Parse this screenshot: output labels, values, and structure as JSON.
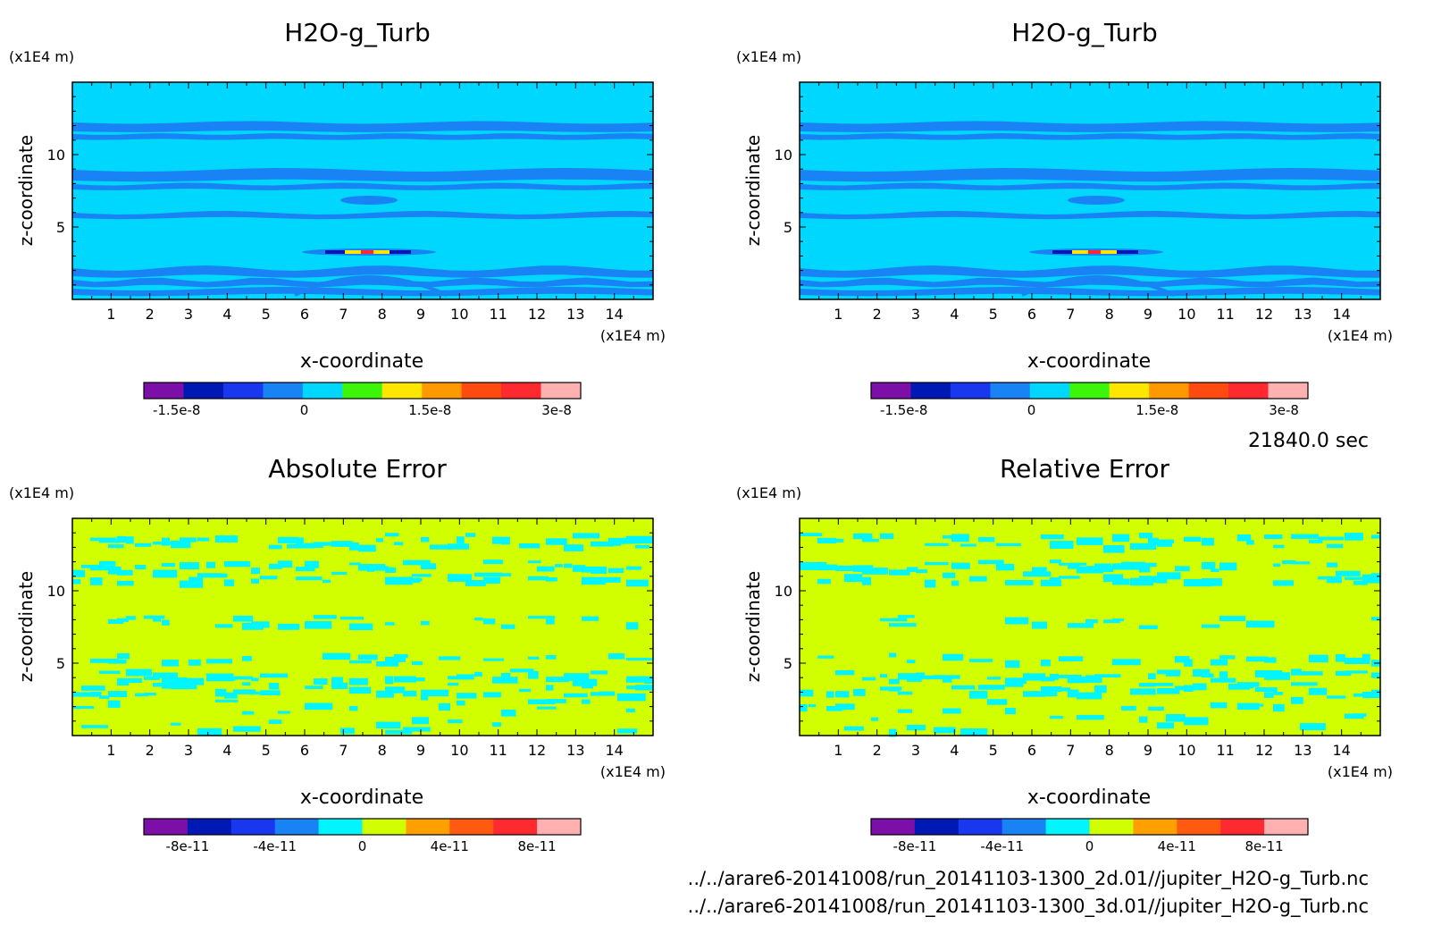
{
  "time_label": "21840.0 sec",
  "files": [
    "../../arare6-20141008/run_20141103-1300_2d.01//jupiter_H2O-g_Turb.nc",
    "../../arare6-20141008/run_20141103-1300_3d.01//jupiter_H2O-g_Turb.nc"
  ],
  "chart_data": [
    {
      "type": "heatmap",
      "title": "H2O-g_Turb",
      "xlabel": "x-coordinate",
      "ylabel": "z-coordinate",
      "x_unit": "(x1E4 m)",
      "y_unit": "(x1E4 m)",
      "xlim": [
        0,
        15
      ],
      "ylim": [
        0,
        15
      ],
      "x_ticks": [
        1,
        2,
        3,
        4,
        5,
        6,
        7,
        8,
        9,
        10,
        11,
        12,
        13,
        14
      ],
      "y_ticks": [
        5,
        10
      ],
      "colorbar": {
        "levels": 10,
        "colors": [
          "#7b0fa8",
          "#0018b4",
          "#1a37f0",
          "#1983f5",
          "#00d7ff",
          "#3cf50a",
          "#ffe600",
          "#ff9900",
          "#ff4a10",
          "#ff2a30",
          "#ffb0b0"
        ],
        "tick_labels": [
          "-1.5e-8",
          "0",
          "1.5e-8",
          "3e-8"
        ],
        "tick_positions": [
          0.075,
          0.367,
          0.655,
          0.945
        ]
      },
      "field": "turb"
    },
    {
      "type": "heatmap",
      "title": "H2O-g_Turb",
      "xlabel": "x-coordinate",
      "ylabel": "z-coordinate",
      "x_unit": "(x1E4 m)",
      "y_unit": "(x1E4 m)",
      "xlim": [
        0,
        15
      ],
      "ylim": [
        0,
        15
      ],
      "x_ticks": [
        1,
        2,
        3,
        4,
        5,
        6,
        7,
        8,
        9,
        10,
        11,
        12,
        13,
        14
      ],
      "y_ticks": [
        5,
        10
      ],
      "colorbar": {
        "levels": 10,
        "colors": [
          "#7b0fa8",
          "#0018b4",
          "#1a37f0",
          "#1983f5",
          "#00d7ff",
          "#3cf50a",
          "#ffe600",
          "#ff9900",
          "#ff4a10",
          "#ff2a30",
          "#ffb0b0"
        ],
        "tick_labels": [
          "-1.5e-8",
          "0",
          "1.5e-8",
          "3e-8"
        ],
        "tick_positions": [
          0.075,
          0.367,
          0.655,
          0.945
        ]
      },
      "field": "turb"
    },
    {
      "type": "heatmap",
      "title": "Absolute Error",
      "xlabel": "x-coordinate",
      "ylabel": "z-coordinate",
      "x_unit": "(x1E4 m)",
      "y_unit": "(x1E4 m)",
      "xlim": [
        0,
        15
      ],
      "ylim": [
        0,
        15
      ],
      "x_ticks": [
        1,
        2,
        3,
        4,
        5,
        6,
        7,
        8,
        9,
        10,
        11,
        12,
        13,
        14
      ],
      "y_ticks": [
        5,
        10
      ],
      "colorbar": {
        "levels": 10,
        "colors": [
          "#7b0fa8",
          "#0018b4",
          "#1a37f0",
          "#1983f5",
          "#00f5ff",
          "#d2ff00",
          "#ffa000",
          "#ff5a10",
          "#ff2a30",
          "#ffb0b0"
        ],
        "tick_labels": [
          "-8e-11",
          "-4e-11",
          "0",
          "4e-11",
          "8e-11"
        ],
        "tick_positions": [
          0.1,
          0.3,
          0.5,
          0.7,
          0.9
        ]
      },
      "field": "abs"
    },
    {
      "type": "heatmap",
      "title": "Relative Error",
      "xlabel": "x-coordinate",
      "ylabel": "z-coordinate",
      "x_unit": "(x1E4 m)",
      "y_unit": "(x1E4 m)",
      "xlim": [
        0,
        15
      ],
      "ylim": [
        0,
        15
      ],
      "x_ticks": [
        1,
        2,
        3,
        4,
        5,
        6,
        7,
        8,
        9,
        10,
        11,
        12,
        13,
        14
      ],
      "y_ticks": [
        5,
        10
      ],
      "colorbar": {
        "levels": 10,
        "colors": [
          "#7b0fa8",
          "#0018b4",
          "#1a37f0",
          "#1983f5",
          "#00f5ff",
          "#d2ff00",
          "#ffa000",
          "#ff5a10",
          "#ff2a30",
          "#ffb0b0"
        ],
        "tick_labels": [
          "-8e-11",
          "-4e-11",
          "0",
          "4e-11",
          "8e-11"
        ],
        "tick_positions": [
          0.1,
          0.3,
          0.5,
          0.7,
          0.9
        ]
      },
      "field": "rel"
    }
  ]
}
